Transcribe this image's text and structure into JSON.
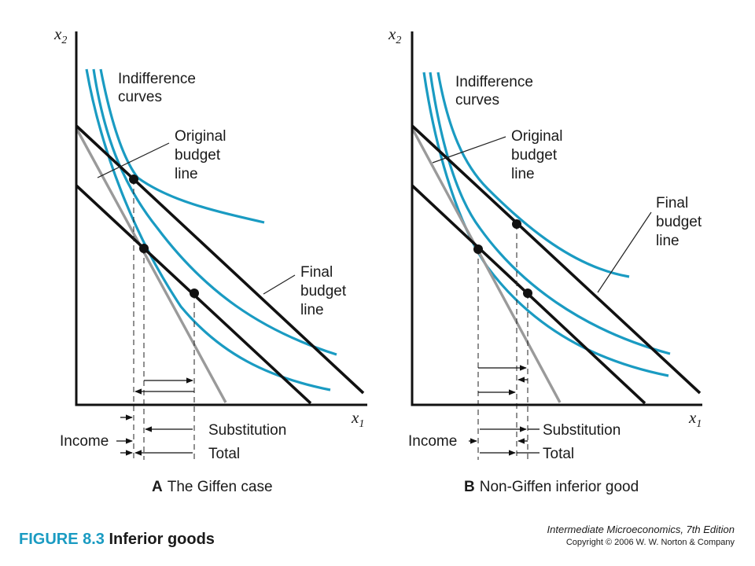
{
  "panel_a": {
    "y_axis_label": "x",
    "y_axis_sub": "2",
    "x_axis_label": "x",
    "x_axis_sub": "1",
    "indifference_line1": "Indifference",
    "indifference_line2": "curves",
    "original_line1": "Original",
    "original_line2": "budget",
    "original_line3": "line",
    "final_line1": "Final",
    "final_line2": "budget",
    "final_line3": "line",
    "substitution": "Substitution",
    "income": "Income",
    "total": "Total",
    "caption_letter": "A",
    "caption_text": "The Giffen case"
  },
  "panel_b": {
    "y_axis_label": "x",
    "y_axis_sub": "2",
    "x_axis_label": "x",
    "x_axis_sub": "1",
    "indifference_line1": "Indifference",
    "indifference_line2": "curves",
    "original_line1": "Original",
    "original_line2": "budget",
    "original_line3": "line",
    "final_line1": "Final",
    "final_line2": "budget",
    "final_line3": "line",
    "substitution": "Substitution",
    "income": "Income",
    "total": "Total",
    "caption_letter": "B",
    "caption_text": "Non-Giffen inferior good"
  },
  "footer": {
    "figure_number": "FIGURE 8.3",
    "figure_title": "Inferior goods",
    "book_title": "Intermediate Microeconomics, 7th Edition",
    "copyright": "Copyright © 2006 W. W. Norton & Company"
  },
  "colors": {
    "indifference_curve": "#1a9bc2",
    "budget_line": "#111111",
    "compensated_line": "#9a9a9a",
    "figure_number": "#1a9bc2"
  }
}
